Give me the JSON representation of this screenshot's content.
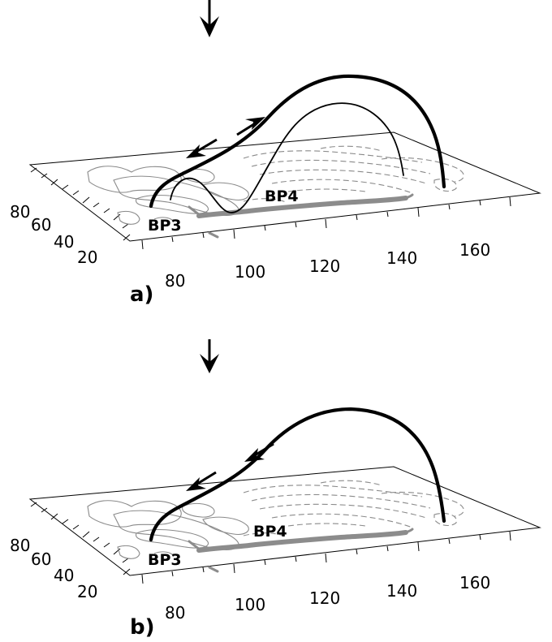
{
  "panels": [
    {
      "label": "a)",
      "x_ticks": [
        "80",
        "100",
        "120",
        "140",
        "160"
      ],
      "y_ticks": [
        "80",
        "60",
        "40",
        "20"
      ],
      "bp3": "BP3",
      "bp4": "BP4"
    },
    {
      "label": "b)",
      "x_ticks": [
        "80",
        "100",
        "120",
        "140",
        "160"
      ],
      "y_ticks": [
        "80",
        "60",
        "40",
        "20"
      ],
      "bp3": "BP3",
      "bp4": "BP4"
    }
  ],
  "colors": {
    "field_line": "#000000",
    "contour": "#8a8a8a",
    "neutral_line": "#8c8c8c"
  }
}
